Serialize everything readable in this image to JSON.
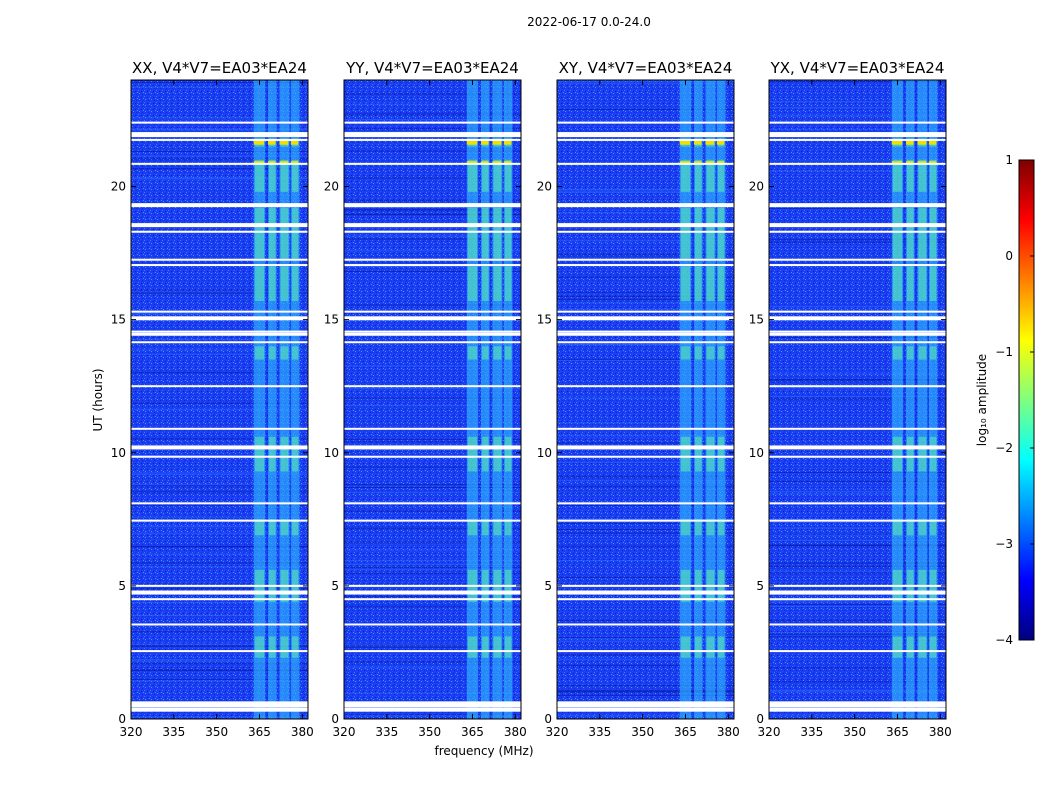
{
  "chart_data": {
    "type": "heatmap",
    "suptitle": "2022-06-17 0.0-24.0",
    "xlabel": "frequency (MHz)",
    "ylabel": "UT (hours)",
    "xlim": [
      320,
      382
    ],
    "ylim": [
      0,
      24
    ],
    "xticks": [
      320,
      335,
      350,
      365,
      380
    ],
    "yticks": [
      0,
      5,
      10,
      15,
      20
    ],
    "panels": [
      {
        "title": "XX, V4*V7=EA03*EA24"
      },
      {
        "title": "YY, V4*V7=EA03*EA24"
      },
      {
        "title": "XY, V4*V7=EA03*EA24"
      },
      {
        "title": "YX, V4*V7=EA03*EA24"
      }
    ],
    "colorbar": {
      "label": "log₁₀ amplitude",
      "range": [
        -4,
        1
      ],
      "ticks": [
        "1",
        "0",
        "−1",
        "−2",
        "−3",
        "−4"
      ],
      "ticks_values": [
        1,
        0,
        -1,
        -2,
        -3,
        -4
      ],
      "colormap": [
        "#00007f",
        "#0000ff",
        "#007fff",
        "#00ffff",
        "#7fff7f",
        "#ffff00",
        "#ff7f00",
        "#ff0000",
        "#7f0000"
      ]
    },
    "rfi_bands_mhz": [
      [
        363,
        367
      ],
      [
        368,
        371
      ],
      [
        372,
        375.5
      ],
      [
        376,
        379
      ]
    ],
    "flagged_ut_hours": [
      0.35,
      0.6,
      2.55,
      3.55,
      4.5,
      4.75,
      5.0,
      7.45,
      8.1,
      9.85,
      10.2,
      10.9,
      12.5,
      14.15,
      14.55,
      15.05,
      15.3,
      17.05,
      17.25,
      18.3,
      19.3,
      20.85,
      21.75,
      22.4
    ]
  }
}
